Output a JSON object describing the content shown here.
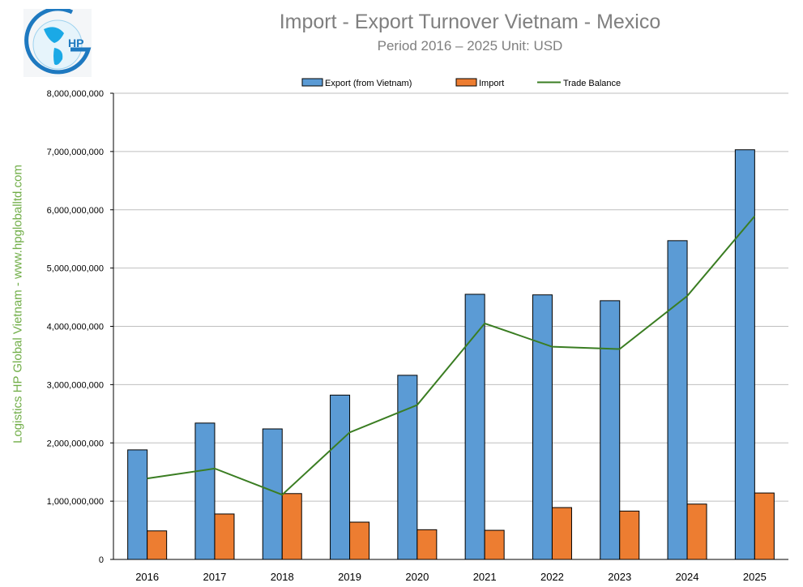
{
  "logo": {
    "text": "HP"
  },
  "side_label": "Logistics HP Global Vietnam - www.hpgloballtd.com",
  "colors": {
    "export": "#5b9bd5",
    "import": "#ed7d31",
    "balance": "#3a7d22",
    "title": "#7f7f7f"
  },
  "chart_data": {
    "type": "bar",
    "title": "Import - Export Turnover Vietnam - Mexico",
    "subtitle": "Period 2016 – 2025  Unit: USD",
    "categories": [
      "2016",
      "2017",
      "2018",
      "2019",
      "2020",
      "2021",
      "2022",
      "2023",
      "2024",
      "2025"
    ],
    "ylim": [
      0,
      8000000000
    ],
    "yticks": [
      "0",
      "1,000,000,000",
      "2,000,000,000",
      "3,000,000,000",
      "4,000,000,000",
      "5,000,000,000",
      "6,000,000,000",
      "7,000,000,000",
      "8,000,000,000"
    ],
    "grid": true,
    "legend": "top",
    "series": [
      {
        "name": "Export (from Vietnam)",
        "type": "bar",
        "values": [
          1880000000,
          2340000000,
          2240000000,
          2820000000,
          3160000000,
          4550000000,
          4540000000,
          4440000000,
          5470000000,
          7030000000
        ]
      },
      {
        "name": "Import",
        "type": "bar",
        "values": [
          490000000,
          780000000,
          1130000000,
          640000000,
          510000000,
          500000000,
          890000000,
          830000000,
          950000000,
          1140000000
        ]
      },
      {
        "name": "Trade Balance",
        "type": "line",
        "values": [
          1390000000,
          1560000000,
          1110000000,
          2180000000,
          2650000000,
          4050000000,
          3650000000,
          3610000000,
          4520000000,
          5890000000
        ]
      }
    ]
  }
}
